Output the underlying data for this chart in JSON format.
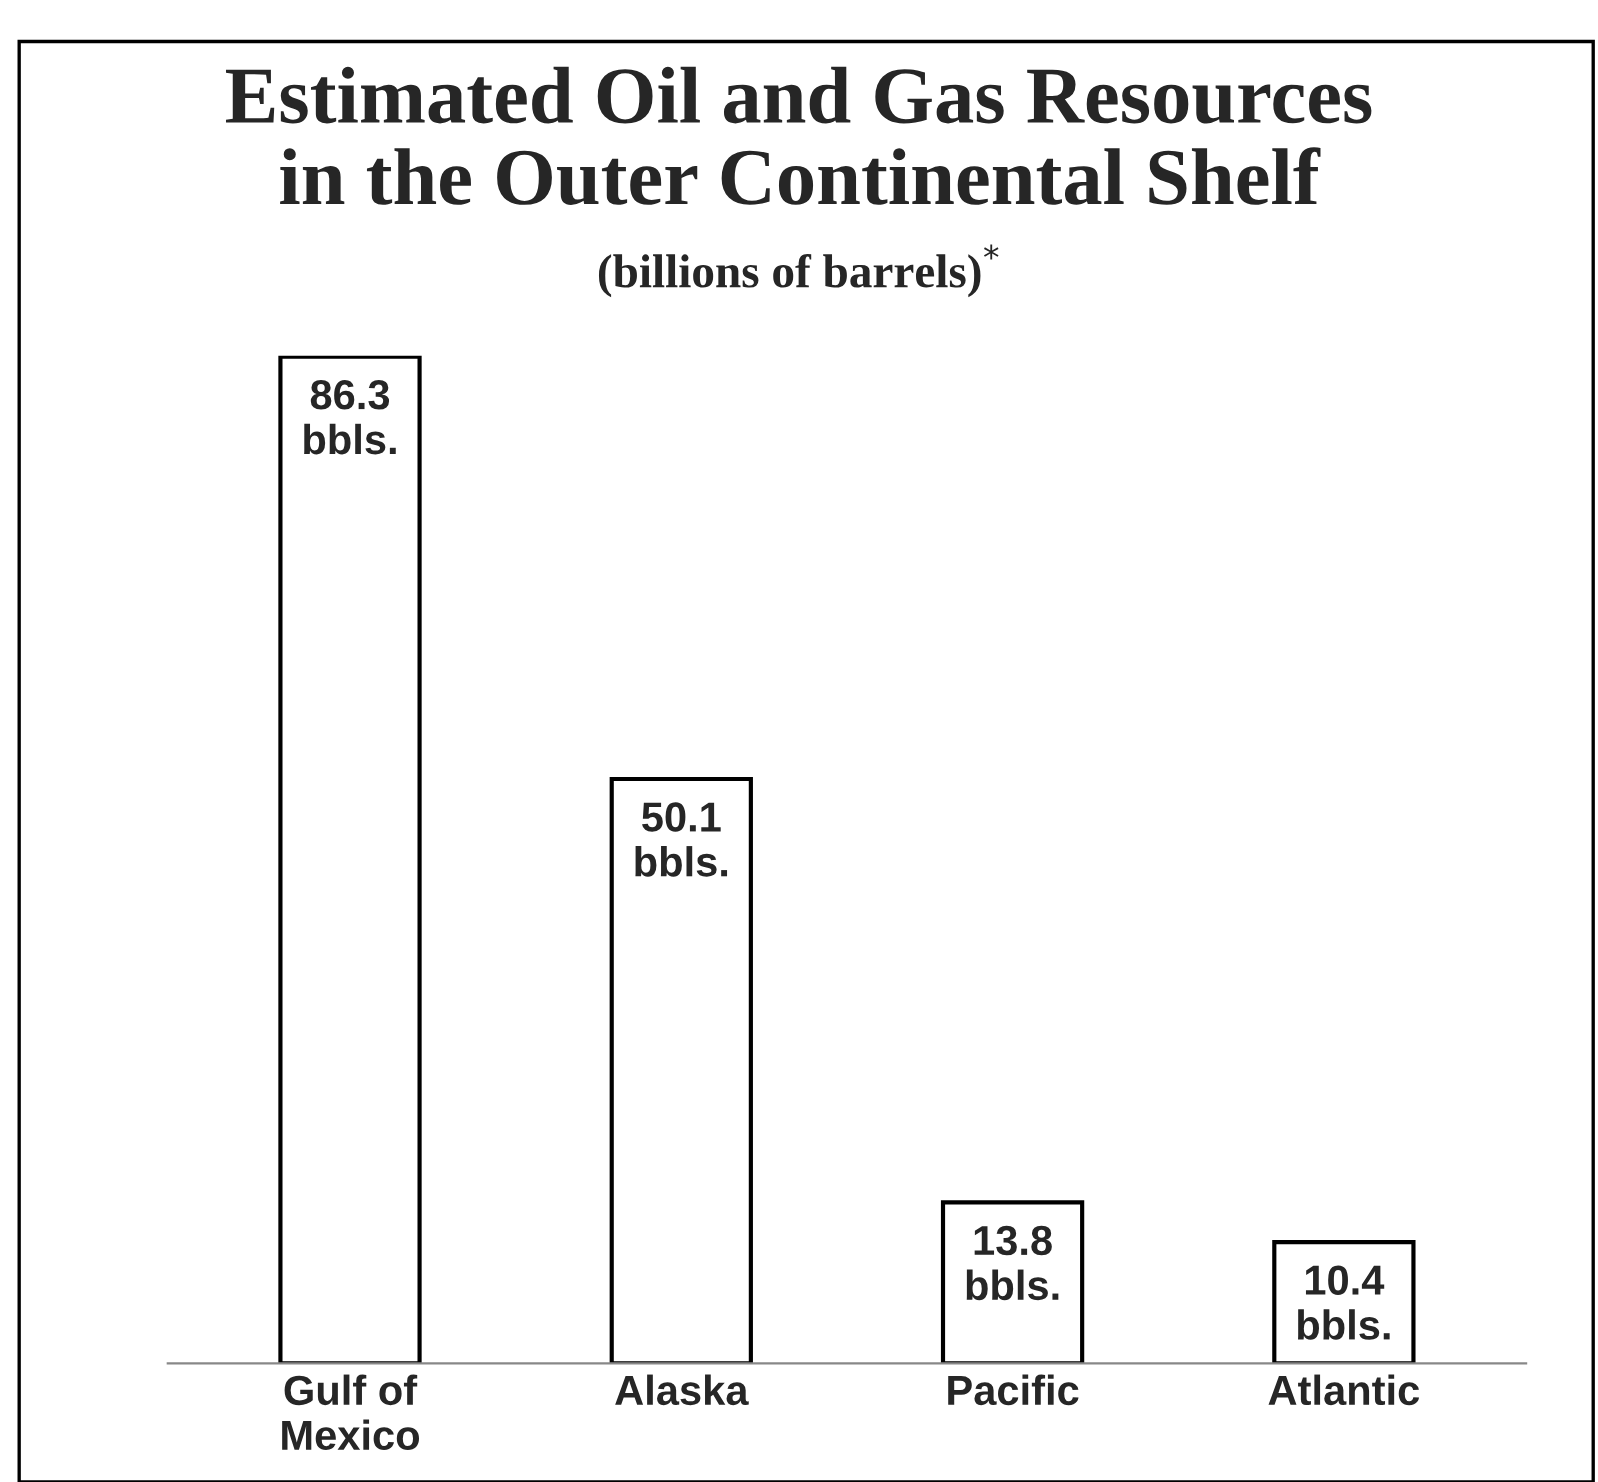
{
  "chart_data": {
    "type": "bar",
    "title": "Estimated Oil and Gas Resources\nin the Outer Continental Shelf",
    "subtitle": "(billions of barrels)$^{*}$",
    "categories": [
      "Gulf of\nMexico",
      "Alaska",
      "Pacific",
      "Atlantic"
    ],
    "values": [
      86.3,
      50.1,
      13.8,
      10.4
    ],
    "value_labels": [
      "86.3\nbbls.",
      "50.1\nbbls.",
      "13.8\nbbls.",
      "10.4\nbbls."
    ],
    "color": "#ffffff",
    "grid": false,
    "legend": false
  }
}
